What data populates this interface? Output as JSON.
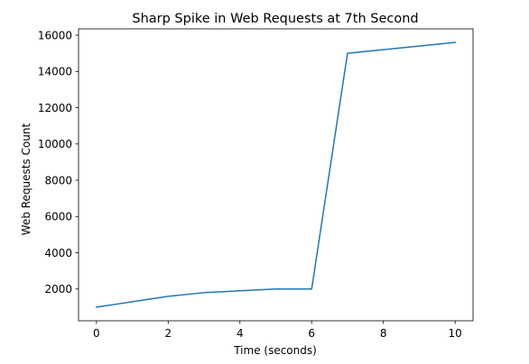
{
  "chart_data": {
    "type": "line",
    "title": "Sharp Spike in Web Requests at 7th Second",
    "xlabel": "Time (seconds)",
    "ylabel": "Web Requests Count",
    "xlim": [
      -0.5,
      10.5
    ],
    "ylim": [
      250,
      16350
    ],
    "x_ticks": [
      0,
      2,
      4,
      6,
      8,
      10
    ],
    "y_ticks": [
      2000,
      4000,
      6000,
      8000,
      10000,
      12000,
      14000,
      16000
    ],
    "grid": false,
    "series": [
      {
        "color": "#1f77b4",
        "x": [
          0,
          1,
          2,
          3,
          4,
          5,
          6,
          7,
          8,
          9,
          10
        ],
        "y": [
          1000,
          1300,
          1600,
          1800,
          1900,
          2000,
          2000,
          15000,
          15200,
          15400,
          15600
        ]
      }
    ]
  }
}
